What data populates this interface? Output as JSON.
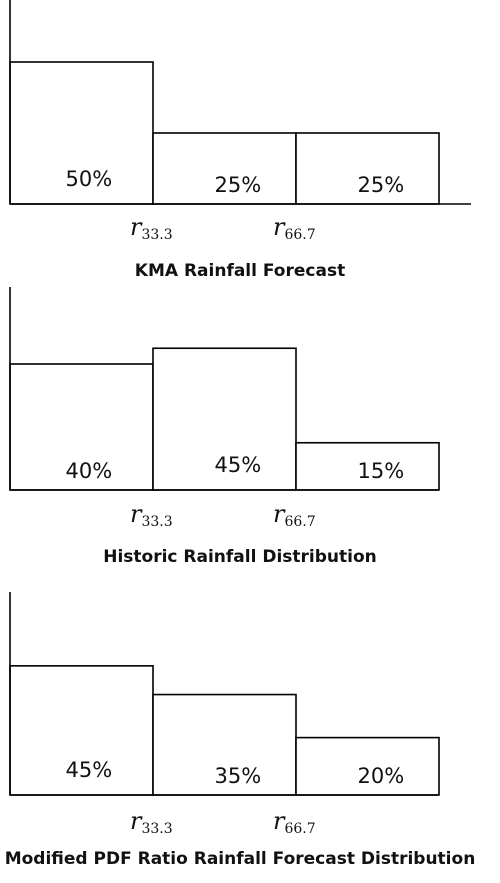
{
  "chart_data": [
    {
      "type": "bar",
      "title": "KMA Rainfall Forecast",
      "categories": [
        "below r33.3",
        "r33.3 to r66.7",
        "above r66.7"
      ],
      "values": [
        50,
        25,
        25
      ],
      "value_labels": [
        "50%",
        "25%",
        "25%"
      ],
      "tick_labels": [
        {
          "base": "r",
          "sub": "33.3"
        },
        {
          "base": "r",
          "sub": "66.7"
        }
      ],
      "unit": "%",
      "ylim": [
        0,
        100
      ],
      "xlabel": "",
      "ylabel": "",
      "grid": false
    },
    {
      "type": "bar",
      "title": "Historic Rainfall Distribution",
      "categories": [
        "below r33.3",
        "r33.3 to r66.7",
        "above r66.7"
      ],
      "values": [
        40,
        45,
        15
      ],
      "value_labels": [
        "40%",
        "45%",
        "15%"
      ],
      "tick_labels": [
        {
          "base": "r",
          "sub": "33.3"
        },
        {
          "base": "r",
          "sub": "66.7"
        }
      ],
      "unit": "%",
      "ylim": [
        0,
        100
      ],
      "xlabel": "",
      "ylabel": "",
      "grid": false
    },
    {
      "type": "bar",
      "title": "Modified PDF Ratio Rainfall Forecast Distribution",
      "categories": [
        "below r33.3",
        "r33.3 to r66.7",
        "above r66.7"
      ],
      "values": [
        45,
        35,
        20
      ],
      "value_labels": [
        "45%",
        "35%",
        "20%"
      ],
      "tick_labels": [
        {
          "base": "r",
          "sub": "33.3"
        },
        {
          "base": "r",
          "sub": "66.7"
        }
      ],
      "unit": "%",
      "ylim": [
        0,
        100
      ],
      "xlabel": "",
      "ylabel": "",
      "grid": false
    }
  ],
  "colors": {
    "bar_fill": "#ffffff",
    "stroke": "#000000",
    "text": "#111111"
  }
}
